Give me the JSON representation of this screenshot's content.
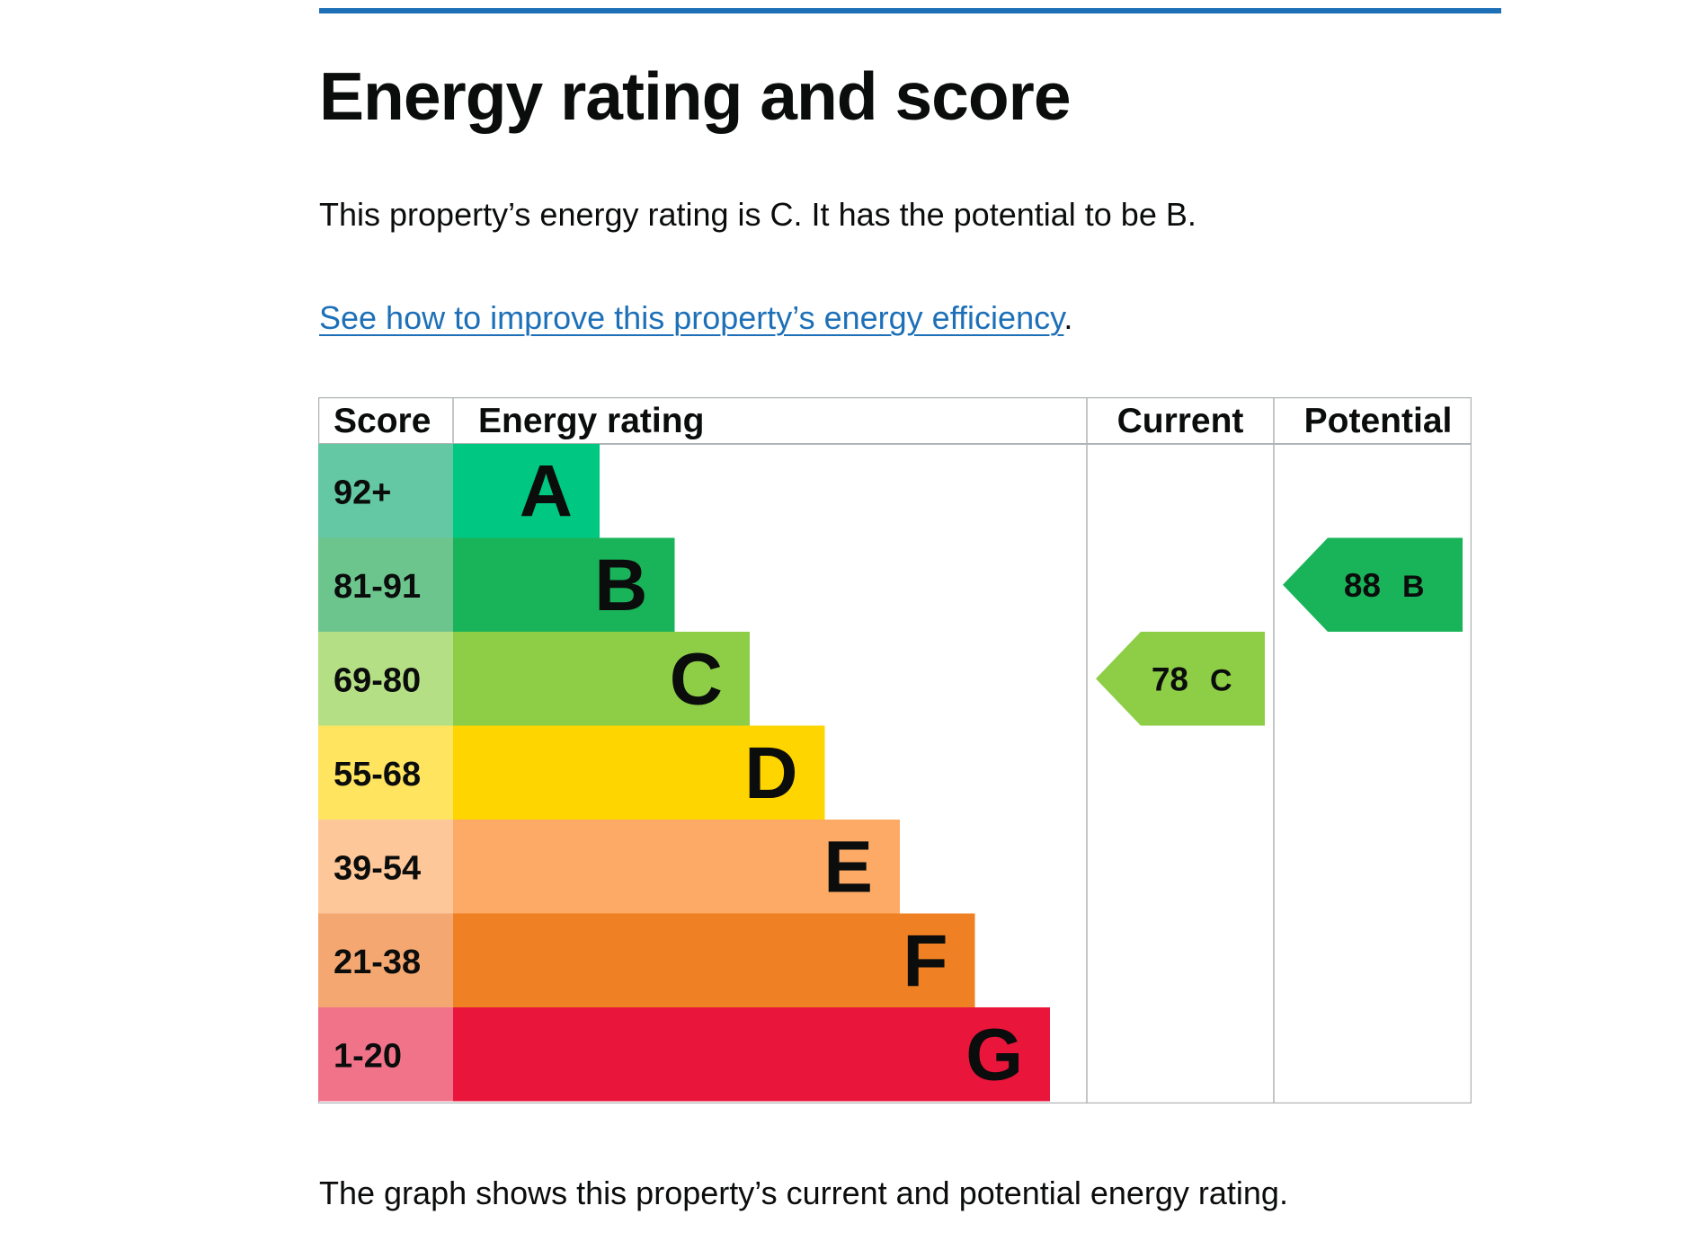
{
  "page": {
    "title": "Energy rating and score",
    "summary": "This property’s energy rating is C. It has the potential to be B.",
    "improve_link": "See how to improve this property’s energy efficiency",
    "improve_suffix": ".",
    "footnote": "The graph shows this property’s current and potential energy rating."
  },
  "colors": {
    "accent_rule": "#1d70b8",
    "link": "#1d70b8"
  },
  "chart_data": {
    "type": "table",
    "headers": {
      "score": "Score",
      "rating": "Energy rating",
      "current": "Current",
      "potential": "Potential"
    },
    "bands": [
      {
        "letter": "A",
        "score": "92+",
        "color": "#00c781",
        "score_color": "#63c8a3"
      },
      {
        "letter": "B",
        "score": "81-91",
        "color": "#19b459",
        "score_color": "#6dc58e"
      },
      {
        "letter": "C",
        "score": "69-80",
        "color": "#8dce46",
        "score_color": "#b5df85"
      },
      {
        "letter": "D",
        "score": "55-68",
        "color": "#ffd500",
        "score_color": "#ffe460"
      },
      {
        "letter": "E",
        "score": "39-54",
        "color": "#fcaa65",
        "score_color": "#fdc79a"
      },
      {
        "letter": "F",
        "score": "21-38",
        "color": "#ef8023",
        "score_color": "#f4a770"
      },
      {
        "letter": "G",
        "score": "1-20",
        "color": "#e9153b",
        "score_color": "#f0738a"
      }
    ],
    "current": {
      "value": 78,
      "letter": "C",
      "color": "#8dce46"
    },
    "potential": {
      "value": 88,
      "letter": "B",
      "color": "#19b459"
    }
  }
}
